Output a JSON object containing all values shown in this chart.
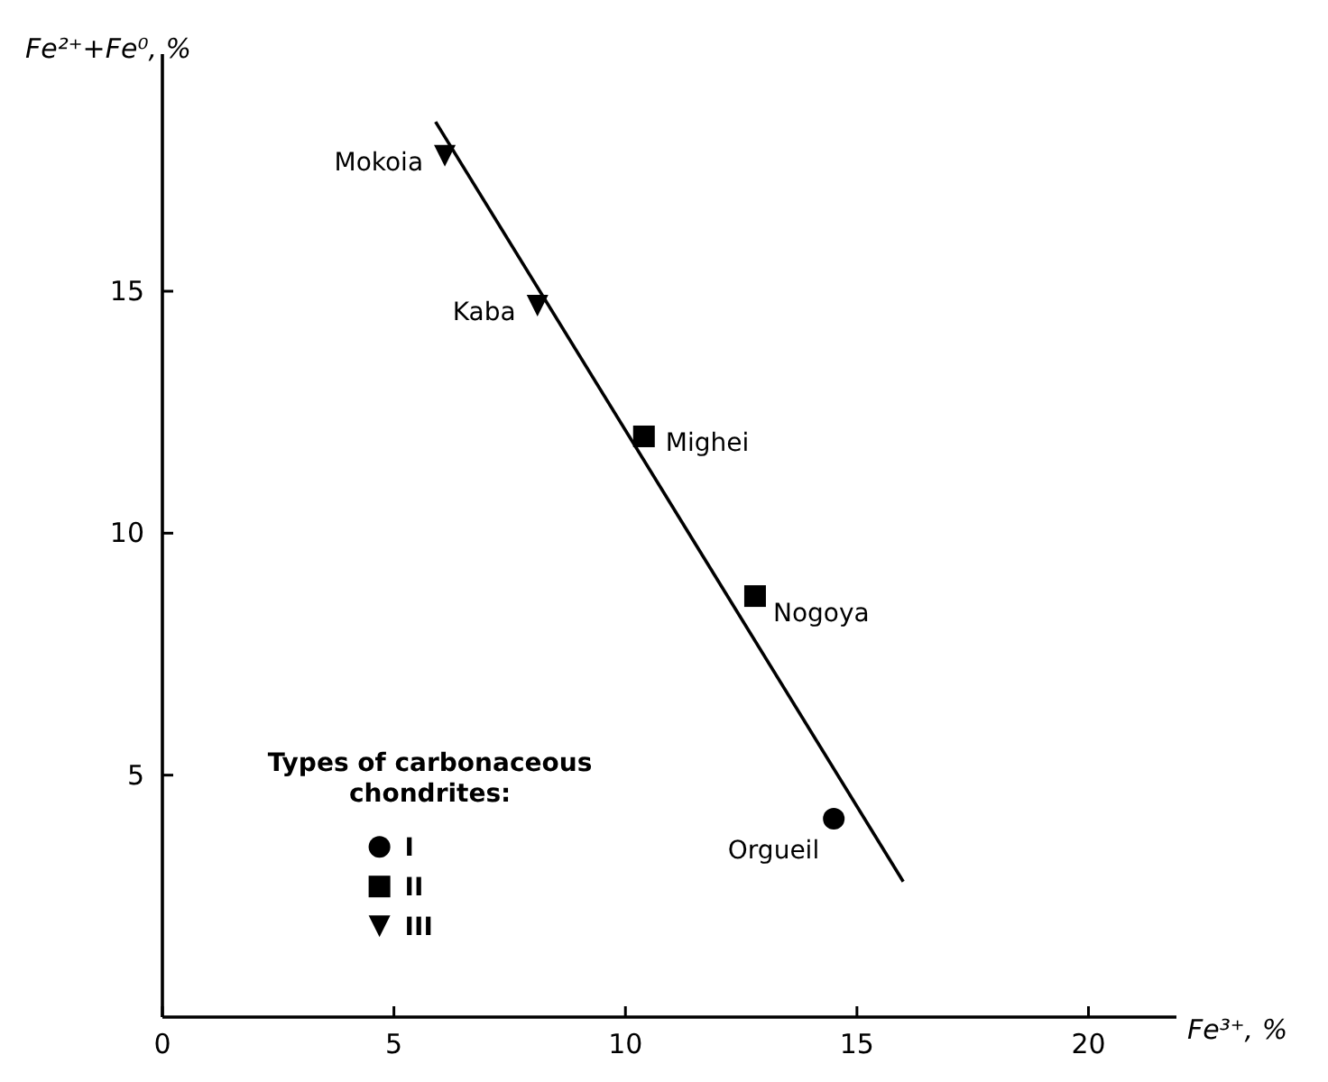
{
  "chart_data": {
    "type": "scatter",
    "xlabel": "Fe³⁺, %",
    "ylabel": "Fe²⁺+Fe⁰, %",
    "legend_title": "Types of carbonaceous chondrites:",
    "xlim": [
      0,
      21.9
    ],
    "ylim": [
      0,
      19.9
    ],
    "xticks": [
      0,
      5,
      10,
      15,
      20
    ],
    "yticks": [
      5,
      10,
      15
    ],
    "grid": false,
    "legend": "bottom left",
    "series": [
      {
        "name": "I",
        "color": "#000000",
        "marker": "circle",
        "x": [
          14.5
        ],
        "values": [
          4.1
        ]
      },
      {
        "name": "II",
        "color": "#000000",
        "marker": "square",
        "x": [
          10.4,
          12.8
        ],
        "values": [
          12.0,
          8.7
        ]
      },
      {
        "name": "III",
        "color": "#000000",
        "marker": "triangle",
        "x": [
          6.1,
          8.1
        ],
        "values": [
          17.8,
          14.7
        ]
      },
      {
        "type": "line",
        "color": "#000000",
        "marker": "none",
        "line_style": "solid",
        "x": [
          5.9,
          16.0
        ],
        "values": [
          18.5,
          2.8
        ]
      }
    ],
    "annotations": [
      {
        "text": "Mokoia",
        "x": 6.1,
        "y": 17.8
      },
      {
        "text": "Kaba",
        "x": 8.1,
        "y": 14.7
      },
      {
        "text": "Mighei",
        "x": 10.4,
        "y": 12.0
      },
      {
        "text": "Nogoya",
        "x": 12.8,
        "y": 8.7
      },
      {
        "text": "Orgueil",
        "x": 14.5,
        "y": 4.1
      }
    ]
  }
}
